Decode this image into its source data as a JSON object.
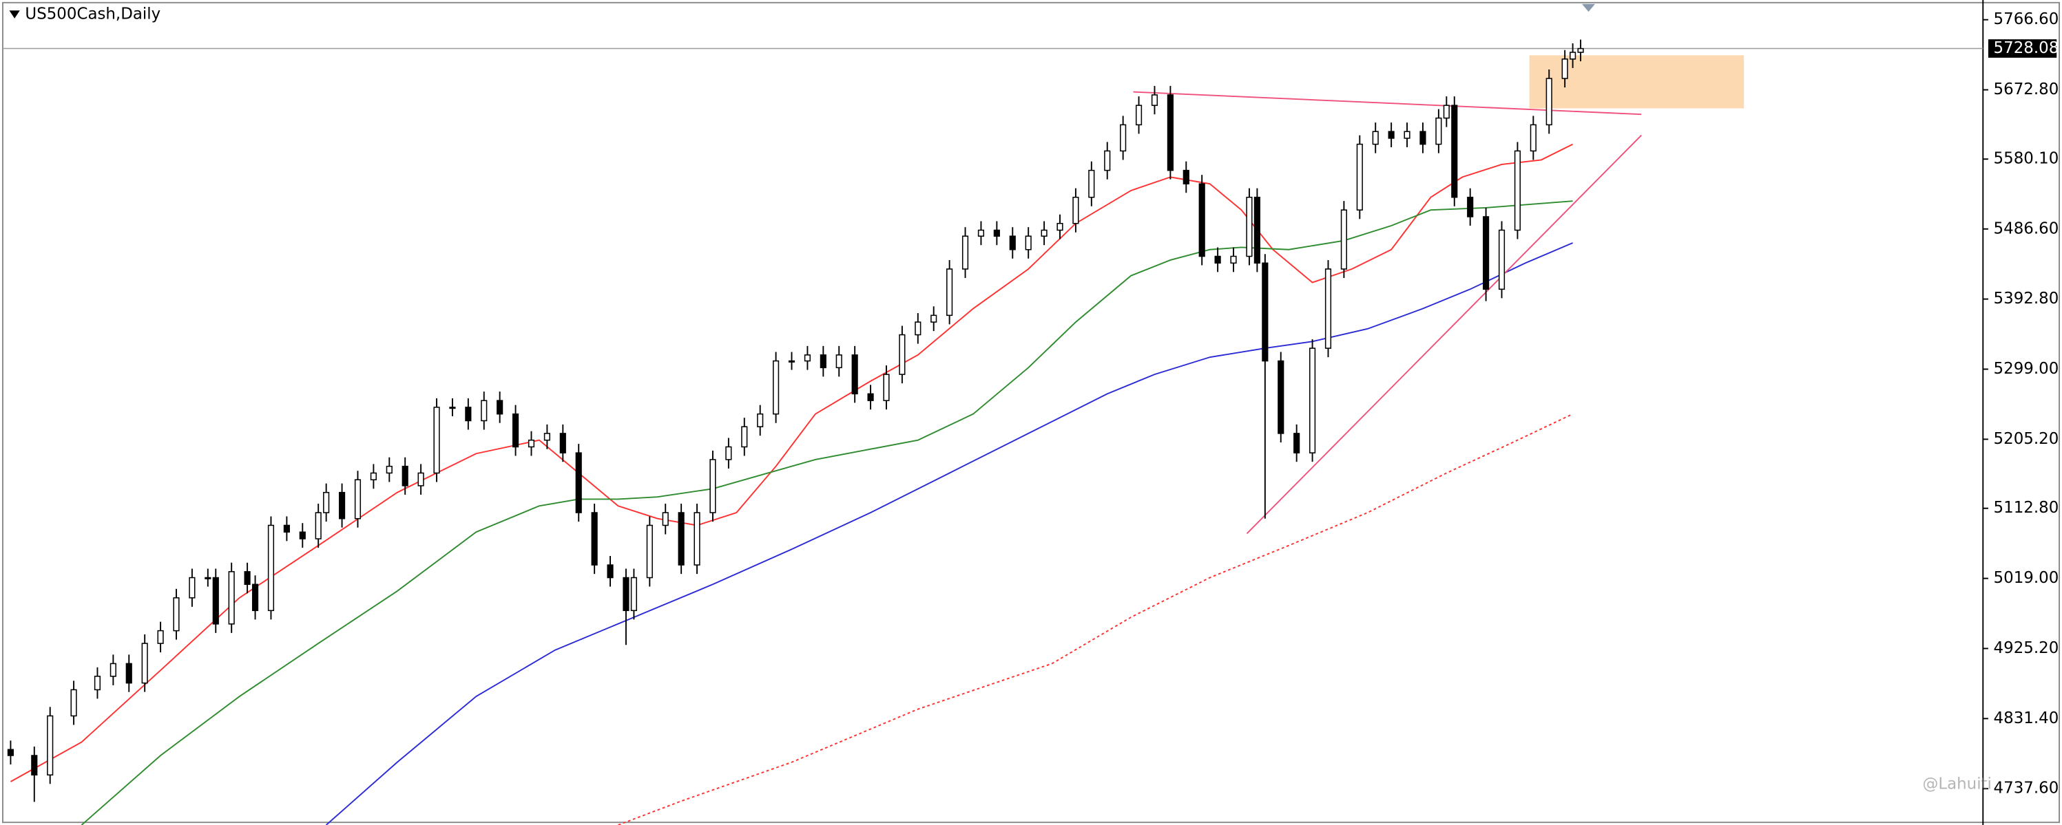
{
  "chart_data": {
    "type": "candlestick",
    "title": "US500Cash,Daily",
    "x": [
      0,
      3,
      5,
      8,
      11,
      13,
      15,
      17,
      19,
      21,
      23,
      25,
      26,
      28,
      30,
      31,
      33,
      35,
      37,
      39,
      40,
      42,
      44,
      46,
      48,
      50,
      52,
      54,
      56,
      58,
      60,
      62,
      64,
      66,
      68,
      70,
      72,
      74,
      76,
      78,
      79,
      81,
      83,
      85,
      87,
      89,
      91,
      93,
      95,
      97,
      99,
      101,
      103,
      105,
      107,
      109,
      111,
      113,
      115,
      117,
      119,
      121,
      123,
      125,
      127,
      129,
      131,
      133,
      135,
      137,
      139,
      141,
      143,
      145,
      147,
      149,
      151,
      153,
      155,
      157,
      158,
      159,
      161,
      163,
      165,
      167,
      169,
      171,
      173,
      175,
      177,
      179,
      181,
      182,
      183,
      185,
      187,
      189,
      191,
      193,
      195,
      197,
      198,
      199
    ],
    "open": [
      4790,
      4782,
      4756,
      4835,
      4870,
      4888,
      4905,
      4879,
      4932,
      4949,
      4993,
      5020,
      5020,
      4958,
      5028,
      5011,
      4976,
      5090,
      5081,
      5072,
      5107,
      5134,
      5099,
      5151,
      5160,
      5169,
      5143,
      5160,
      5248,
      5248,
      5230,
      5257,
      5239,
      5195,
      5204,
      5213,
      5187,
      5107,
      5037,
      5020,
      4976,
      5020,
      5090,
      5107,
      5037,
      5107,
      5178,
      5195,
      5222,
      5239,
      5310,
      5310,
      5318,
      5301,
      5318,
      5266,
      5257,
      5292,
      5345,
      5362,
      5371,
      5433,
      5477,
      5485,
      5477,
      5459,
      5477,
      5485,
      5494,
      5529,
      5565,
      5591,
      5626,
      5652,
      5666,
      5565,
      5547,
      5450,
      5441,
      5450,
      5529,
      5441,
      5310,
      5213,
      5187,
      5327,
      5433,
      5512,
      5600,
      5617,
      5608,
      5617,
      5600,
      5635,
      5652,
      5529,
      5503,
      5406,
      5485,
      5591,
      5626,
      5688,
      5714,
      5723
    ],
    "high": [
      4802,
      4794,
      4847,
      4882,
      4900,
      4917,
      4917,
      4944,
      4961,
      5005,
      5032,
      5032,
      5032,
      5040,
      5040,
      5023,
      5102,
      5102,
      5093,
      5119,
      5146,
      5146,
      5163,
      5172,
      5181,
      5181,
      5172,
      5260,
      5260,
      5260,
      5269,
      5269,
      5251,
      5216,
      5225,
      5225,
      5199,
      5119,
      5049,
      5032,
      5032,
      5102,
      5119,
      5119,
      5119,
      5190,
      5207,
      5234,
      5251,
      5322,
      5322,
      5330,
      5330,
      5330,
      5330,
      5278,
      5304,
      5357,
      5374,
      5383,
      5445,
      5489,
      5497,
      5497,
      5489,
      5489,
      5497,
      5506,
      5541,
      5577,
      5603,
      5638,
      5664,
      5678,
      5678,
      5577,
      5559,
      5462,
      5462,
      5541,
      5541,
      5453,
      5322,
      5225,
      5339,
      5445,
      5524,
      5612,
      5629,
      5629,
      5629,
      5629,
      5647,
      5664,
      5664,
      5541,
      5515,
      5497,
      5603,
      5638,
      5700,
      5726,
      5735,
      5740
    ],
    "low": [
      4770,
      4720,
      4744,
      4823,
      4858,
      4876,
      4867,
      4867,
      4920,
      4937,
      4981,
      5008,
      4946,
      4946,
      4999,
      4964,
      4964,
      5069,
      5060,
      5060,
      5095,
      5087,
      5087,
      5139,
      5148,
      5131,
      5131,
      5148,
      5236,
      5218,
      5218,
      5227,
      5183,
      5183,
      5192,
      5175,
      5095,
      5025,
      5008,
      4930,
      4964,
      5008,
      5078,
      5025,
      5025,
      5095,
      5166,
      5183,
      5210,
      5227,
      5298,
      5298,
      5289,
      5289,
      5254,
      5245,
      5245,
      5280,
      5333,
      5350,
      5359,
      5421,
      5465,
      5465,
      5447,
      5447,
      5465,
      5473,
      5482,
      5517,
      5553,
      5579,
      5614,
      5640,
      5553,
      5535,
      5438,
      5429,
      5429,
      5438,
      5429,
      5099,
      5201,
      5175,
      5175,
      5315,
      5421,
      5500,
      5588,
      5596,
      5596,
      5588,
      5588,
      5623,
      5517,
      5491,
      5390,
      5394,
      5473,
      5579,
      5614,
      5676,
      5702,
      5711
    ],
    "close": [
      4782,
      4756,
      4835,
      4870,
      4888,
      4905,
      4879,
      4932,
      4949,
      4993,
      5020,
      5020,
      4958,
      5028,
      5011,
      4976,
      5090,
      5081,
      5072,
      5107,
      5134,
      5099,
      5151,
      5160,
      5169,
      5143,
      5160,
      5248,
      5248,
      5230,
      5257,
      5239,
      5195,
      5204,
      5213,
      5187,
      5107,
      5037,
      5020,
      4976,
      5020,
      5090,
      5107,
      5037,
      5107,
      5178,
      5195,
      5222,
      5239,
      5310,
      5310,
      5318,
      5301,
      5318,
      5266,
      5257,
      5292,
      5345,
      5362,
      5371,
      5433,
      5477,
      5485,
      5477,
      5459,
      5477,
      5485,
      5494,
      5529,
      5565,
      5591,
      5626,
      5652,
      5666,
      5565,
      5547,
      5450,
      5441,
      5450,
      5529,
      5441,
      5310,
      5213,
      5187,
      5327,
      5433,
      5512,
      5600,
      5617,
      5608,
      5617,
      5600,
      5635,
      5652,
      5529,
      5503,
      5406,
      5485,
      5591,
      5626,
      5688,
      5714,
      5723,
      5728
    ],
    "bull_color": "#ffffff",
    "bear_color": "#000000",
    "xlim": [
      -1,
      250
    ],
    "ylim": [
      4689,
      5793
    ],
    "yticks": [
      {
        "value": 5766.6,
        "label": "5766.60"
      },
      {
        "value": 5672.8,
        "label": "5672.80"
      },
      {
        "value": 5580.1,
        "label": "5580.10"
      },
      {
        "value": 5486.6,
        "label": "5486.60"
      },
      {
        "value": 5392.8,
        "label": "5392.80"
      },
      {
        "value": 5299,
        "label": "5299.00"
      },
      {
        "value": 5205.2,
        "label": "5205.20"
      },
      {
        "value": 5112.8,
        "label": "5112.80"
      },
      {
        "value": 5019,
        "label": "5019.00"
      },
      {
        "value": 4925.2,
        "label": "4925.20"
      },
      {
        "value": 4831.4,
        "label": "4831.40"
      },
      {
        "value": 4737.6,
        "label": "4737.60"
      }
    ],
    "last_price": 5728.08,
    "moving_averages": [
      {
        "color": "#ff3030",
        "dashed": false,
        "x": [
          0,
          9,
          19,
          29,
          39,
          49,
          59,
          67,
          72,
          77,
          82,
          87,
          92,
          97,
          102,
          109,
          115,
          122,
          129,
          135,
          142,
          147,
          152,
          156,
          160,
          165,
          170,
          175,
          180,
          184,
          189,
          194,
          198
        ],
        "values": [
          4747,
          4800,
          4896,
          4993,
          5063,
          5134,
          5186,
          5204,
          5160,
          5116,
          5099,
          5090,
          5107,
          5169,
          5239,
          5283,
          5318,
          5380,
          5433,
          5494,
          5538,
          5556,
          5547,
          5512,
          5459,
          5415,
          5433,
          5459,
          5529,
          5556,
          5573,
          5579,
          5600
        ]
      },
      {
        "color": "#2e8b2e",
        "dashed": false,
        "x": [
          9,
          19,
          29,
          39,
          49,
          59,
          67,
          72,
          77,
          82,
          89,
          95,
          102,
          109,
          115,
          122,
          129,
          135,
          142,
          147,
          152,
          156,
          162,
          169,
          175,
          180,
          187,
          198
        ],
        "values": [
          4689,
          4782,
          4861,
          4932,
          5002,
          5081,
          5116,
          5125,
          5125,
          5128,
          5139,
          5157,
          5178,
          5192,
          5204,
          5239,
          5301,
          5362,
          5424,
          5445,
          5459,
          5462,
          5459,
          5471,
          5491,
          5512,
          5515,
          5524
        ]
      },
      {
        "color": "#2b2bd6",
        "dashed": false,
        "x": [
          40,
          49,
          59,
          69,
          79,
          89,
          99,
          109,
          119,
          129,
          139,
          145,
          152,
          159,
          165,
          172,
          179,
          185,
          192,
          198
        ],
        "values": [
          4689,
          4773,
          4861,
          4923,
          4967,
          5011,
          5058,
          5107,
          5160,
          5213,
          5266,
          5292,
          5315,
          5327,
          5336,
          5353,
          5380,
          5406,
          5441,
          5468
        ]
      },
      {
        "color": "#ff3030",
        "dashed": true,
        "x": [
          77,
          85,
          99,
          115,
          132,
          142,
          152,
          162,
          172,
          182,
          190,
          198
        ],
        "values": [
          4689,
          4721,
          4773,
          4844,
          4905,
          4967,
          5020,
          5063,
          5107,
          5160,
          5199,
          5239
        ]
      }
    ],
    "trendlines": [
      {
        "color": "#f0507a",
        "x": [
          142.3,
          206.7
        ],
        "values": [
          5670,
          5640
        ]
      },
      {
        "color": "#f0507a",
        "x": [
          156.7,
          206.7
        ],
        "values": [
          5079,
          5612
        ]
      }
    ],
    "zones": [
      {
        "color": "#fcd9b0",
        "x": [
          192.5,
          219.7
        ],
        "values": [
          5648,
          5719
        ]
      }
    ],
    "watermark": "@Lahuiti"
  }
}
